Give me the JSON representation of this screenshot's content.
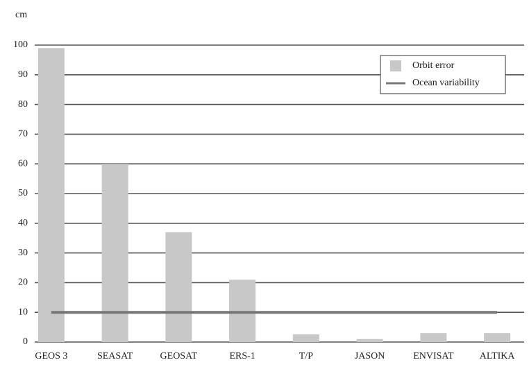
{
  "chart_data": {
    "type": "bar",
    "y_label": "cm",
    "categories": [
      "GEOS 3",
      "SEASAT",
      "GEOSAT",
      "ERS-1",
      "T/P",
      "JASON",
      "ENVISAT",
      "ALTIKA"
    ],
    "series": [
      {
        "name": "Orbit error",
        "color": "#c8c8c8",
        "values": [
          99,
          60,
          37,
          21,
          2.6,
          1,
          3,
          3
        ]
      },
      {
        "name": "Ocean variability",
        "color": "#777777",
        "type": "line",
        "values": [
          10,
          10,
          10,
          10,
          10,
          10,
          10,
          10
        ]
      }
    ],
    "ylim": [
      0,
      100
    ],
    "yticks": [
      0,
      10,
      20,
      30,
      40,
      50,
      60,
      70,
      80,
      90,
      100
    ],
    "grid": true,
    "legend": "upper right"
  }
}
